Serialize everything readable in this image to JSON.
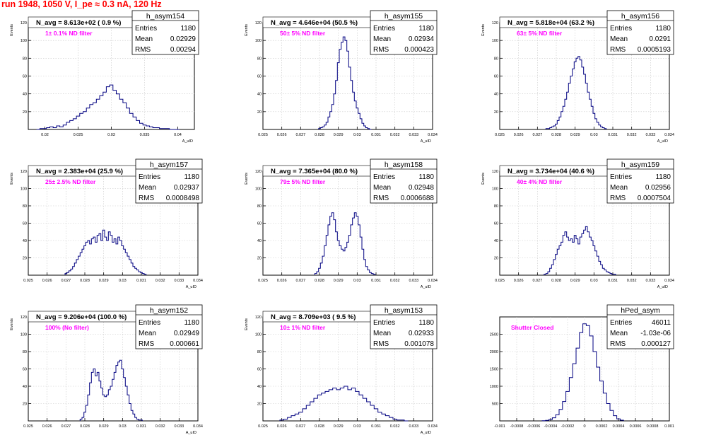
{
  "header": {
    "run_title": "run 1948,  1050 V, I_pe ≈ 0.3 nA, 120 Hz"
  },
  "colors": {
    "hist_line": "#000080",
    "title_red": "#ff0000",
    "filter_magenta": "#ff00ff",
    "grid": "#c8c8c8",
    "axis": "#000000"
  },
  "chart_data": [
    {
      "type": "bar",
      "title": "h_asym154",
      "stats": {
        "entries_label": "Entries",
        "entries": "1180",
        "mean_label": "Mean",
        "mean": "0.02929",
        "rms_label": "RMS",
        "rms": "0.00294"
      },
      "navg": "N_avg = 8.613e+02 ( 0.9 %)",
      "filter": "1± 0.1% ND filter",
      "xlabel": "A_uID",
      "ylabel": "Events",
      "xlim": [
        0.0175,
        0.0425
      ],
      "ylim": [
        0,
        120
      ],
      "xticks": [
        "0.02",
        "0.025",
        "0.03",
        "0.035",
        "0.04"
      ],
      "yticks": [
        "20",
        "40",
        "60",
        "80",
        "100",
        "120"
      ],
      "x": [
        0.019,
        0.0195,
        0.02,
        0.0205,
        0.021,
        0.0215,
        0.022,
        0.0225,
        0.023,
        0.0235,
        0.024,
        0.0245,
        0.025,
        0.0255,
        0.026,
        0.0265,
        0.027,
        0.0275,
        0.028,
        0.0285,
        0.029,
        0.0295,
        0.03,
        0.0305,
        0.031,
        0.0315,
        0.032,
        0.0325,
        0.033,
        0.0335,
        0.034,
        0.0345,
        0.035,
        0.0355,
        0.036,
        0.0365,
        0.037,
        0.0375,
        0.038,
        0.0385,
        0.039,
        0.0395,
        0.04
      ],
      "values": [
        0,
        1,
        1,
        2,
        3,
        2,
        4,
        3,
        5,
        8,
        10,
        12,
        15,
        18,
        20,
        24,
        28,
        30,
        34,
        38,
        42,
        48,
        50,
        44,
        40,
        34,
        30,
        24,
        18,
        14,
        10,
        7,
        5,
        4,
        3,
        2,
        2,
        1,
        1,
        1,
        0,
        0,
        0
      ]
    },
    {
      "type": "bar",
      "title": "h_asym155",
      "stats": {
        "entries_label": "Entries",
        "entries": "1180",
        "mean_label": "Mean",
        "mean": "0.02934",
        "rms_label": "RMS",
        "rms": "0.000423"
      },
      "navg": "N_avg = 4.646e+04 (50.5 %)",
      "filter": "50± 5% ND filter",
      "xlabel": "A_uID",
      "ylabel": "Events",
      "xlim": [
        0.025,
        0.034
      ],
      "ylim": [
        0,
        120
      ],
      "xticks": [
        "0.025",
        "0.026",
        "0.027",
        "0.028",
        "0.029",
        "0.03",
        "0.031",
        "0.032",
        "0.033",
        "0.034"
      ],
      "yticks": [
        "20",
        "40",
        "60",
        "80",
        "100",
        "120"
      ],
      "x": [
        0.028,
        0.0281,
        0.0282,
        0.0283,
        0.0284,
        0.0285,
        0.0286,
        0.0287,
        0.0288,
        0.0289,
        0.029,
        0.0291,
        0.0292,
        0.0293,
        0.0294,
        0.0295,
        0.0296,
        0.0297,
        0.0298,
        0.0299,
        0.03,
        0.0301,
        0.0302,
        0.0303,
        0.0304,
        0.0305,
        0.0306,
        0.0307
      ],
      "values": [
        1,
        2,
        3,
        5,
        8,
        14,
        20,
        28,
        40,
        55,
        75,
        90,
        98,
        104,
        100,
        88,
        70,
        55,
        42,
        32,
        24,
        18,
        12,
        7,
        4,
        2,
        1,
        0
      ]
    },
    {
      "type": "bar",
      "title": "h_asym156",
      "stats": {
        "entries_label": "Entries",
        "entries": "1180",
        "mean_label": "Mean",
        "mean": "0.0291",
        "rms_label": "RMS",
        "rms": "0.0005193"
      },
      "navg": "N_avg = 5.818e+04 (63.2 %)",
      "filter": "63± 5% ND filter",
      "xlabel": "A_uID",
      "ylabel": "Events",
      "xlim": [
        0.025,
        0.034
      ],
      "ylim": [
        0,
        120
      ],
      "xticks": [
        "0.025",
        "0.026",
        "0.027",
        "0.028",
        "0.029",
        "0.03",
        "0.031",
        "0.032",
        "0.033",
        "0.034"
      ],
      "yticks": [
        "20",
        "40",
        "60",
        "80",
        "100",
        "120"
      ],
      "x": [
        0.0275,
        0.0276,
        0.0277,
        0.0278,
        0.0279,
        0.028,
        0.0281,
        0.0282,
        0.0283,
        0.0284,
        0.0285,
        0.0286,
        0.0287,
        0.0288,
        0.0289,
        0.029,
        0.0291,
        0.0292,
        0.0293,
        0.0294,
        0.0295,
        0.0296,
        0.0297,
        0.0298,
        0.0299,
        0.03,
        0.0301,
        0.0302,
        0.0303,
        0.0304,
        0.0305,
        0.0306
      ],
      "values": [
        1,
        1,
        2,
        3,
        4,
        6,
        10,
        14,
        20,
        26,
        34,
        42,
        52,
        60,
        68,
        76,
        80,
        82,
        78,
        70,
        62,
        52,
        42,
        34,
        26,
        18,
        12,
        8,
        5,
        3,
        2,
        1
      ]
    },
    {
      "type": "bar",
      "title": "h_asym157",
      "stats": {
        "entries_label": "Entries",
        "entries": "1180",
        "mean_label": "Mean",
        "mean": "0.02937",
        "rms_label": "RMS",
        "rms": "0.0008498"
      },
      "navg": "N_avg = 2.383e+04 (25.9 %)",
      "filter": "25± 2.5% ND filter",
      "xlabel": "A_uID",
      "ylabel": "Events",
      "xlim": [
        0.025,
        0.034
      ],
      "ylim": [
        0,
        120
      ],
      "xticks": [
        "0.025",
        "0.026",
        "0.027",
        "0.028",
        "0.029",
        "0.03",
        "0.031",
        "0.032",
        "0.033",
        "0.034"
      ],
      "yticks": [
        "20",
        "40",
        "60",
        "80",
        "100",
        "120"
      ],
      "x": [
        0.027,
        0.0271,
        0.0272,
        0.0273,
        0.0274,
        0.0275,
        0.0276,
        0.0277,
        0.0278,
        0.0279,
        0.028,
        0.0281,
        0.0282,
        0.0283,
        0.0284,
        0.0285,
        0.0286,
        0.0287,
        0.0288,
        0.0289,
        0.029,
        0.0291,
        0.0292,
        0.0293,
        0.0294,
        0.0295,
        0.0296,
        0.0297,
        0.0298,
        0.0299,
        0.03,
        0.0301,
        0.0302,
        0.0303,
        0.0304,
        0.0305,
        0.0306,
        0.0307,
        0.0308,
        0.0309,
        0.031,
        0.0311,
        0.0312
      ],
      "values": [
        2,
        3,
        5,
        7,
        10,
        14,
        18,
        22,
        26,
        30,
        34,
        38,
        40,
        36,
        42,
        44,
        38,
        46,
        48,
        40,
        52,
        44,
        40,
        50,
        46,
        38,
        42,
        36,
        44,
        40,
        34,
        30,
        26,
        22,
        18,
        14,
        10,
        8,
        6,
        4,
        3,
        2,
        1
      ]
    },
    {
      "type": "bar",
      "title": "h_asym158",
      "stats": {
        "entries_label": "Entries",
        "entries": "1180",
        "mean_label": "Mean",
        "mean": "0.02948",
        "rms_label": "RMS",
        "rms": "0.0006688"
      },
      "navg": "N_avg = 7.365e+04 (80.0 %)",
      "filter": "79± 5% ND filter",
      "xlabel": "A_uID",
      "ylabel": "Events",
      "xlim": [
        0.025,
        0.034
      ],
      "ylim": [
        0,
        120
      ],
      "xticks": [
        "0.025",
        "0.026",
        "0.027",
        "0.028",
        "0.029",
        "0.03",
        "0.031",
        "0.032",
        "0.033",
        "0.034"
      ],
      "yticks": [
        "20",
        "40",
        "60",
        "80",
        "100",
        "120"
      ],
      "x": [
        0.0278,
        0.0279,
        0.028,
        0.0281,
        0.0282,
        0.0283,
        0.0284,
        0.0285,
        0.0286,
        0.0287,
        0.0288,
        0.0289,
        0.029,
        0.0291,
        0.0292,
        0.0293,
        0.0294,
        0.0295,
        0.0296,
        0.0297,
        0.0298,
        0.0299,
        0.03,
        0.0301,
        0.0302,
        0.0303,
        0.0304,
        0.0305,
        0.0306,
        0.0307,
        0.0308,
        0.0309
      ],
      "values": [
        2,
        4,
        8,
        14,
        22,
        34,
        46,
        58,
        68,
        72,
        64,
        50,
        40,
        34,
        30,
        28,
        32,
        38,
        46,
        58,
        66,
        72,
        68,
        58,
        44,
        30,
        18,
        10,
        6,
        3,
        2,
        1
      ]
    },
    {
      "type": "bar",
      "title": "h_asym159",
      "stats": {
        "entries_label": "Entries",
        "entries": "1180",
        "mean_label": "Mean",
        "mean": "0.02956",
        "rms_label": "RMS",
        "rms": "0.0007504"
      },
      "navg": "N_avg = 3.734e+04 (40.6 %)",
      "filter": "40± 4% ND filter",
      "xlabel": "A_uID",
      "ylabel": "Events",
      "xlim": [
        0.025,
        0.034
      ],
      "ylim": [
        0,
        120
      ],
      "xticks": [
        "0.025",
        "0.026",
        "0.027",
        "0.028",
        "0.029",
        "0.03",
        "0.031",
        "0.032",
        "0.033",
        "0.034"
      ],
      "yticks": [
        "20",
        "40",
        "60",
        "80",
        "100",
        "120"
      ],
      "x": [
        0.0274,
        0.0275,
        0.0276,
        0.0277,
        0.0278,
        0.0279,
        0.028,
        0.0281,
        0.0282,
        0.0283,
        0.0284,
        0.0285,
        0.0286,
        0.0287,
        0.0288,
        0.0289,
        0.029,
        0.0291,
        0.0292,
        0.0293,
        0.0294,
        0.0295,
        0.0296,
        0.0297,
        0.0298,
        0.0299,
        0.03,
        0.0301,
        0.0302,
        0.0303,
        0.0304,
        0.0305,
        0.0306,
        0.0307,
        0.0308,
        0.0309,
        0.031,
        0.0311
      ],
      "values": [
        1,
        2,
        4,
        8,
        12,
        18,
        24,
        30,
        34,
        38,
        46,
        50,
        44,
        40,
        42,
        38,
        46,
        42,
        36,
        44,
        48,
        52,
        56,
        50,
        44,
        40,
        34,
        28,
        22,
        16,
        12,
        8,
        6,
        4,
        3,
        2,
        1,
        1
      ]
    },
    {
      "type": "bar",
      "title": "h_asym152",
      "stats": {
        "entries_label": "Entries",
        "entries": "1180",
        "mean_label": "Mean",
        "mean": "0.02949",
        "rms_label": "RMS",
        "rms": "0.000661"
      },
      "navg": "N_avg = 9.206e+04 (100.0 %)",
      "filter": "100% (No filter)",
      "xlabel": "A_uID",
      "ylabel": "Events",
      "xlim": [
        0.025,
        0.034
      ],
      "ylim": [
        0,
        120
      ],
      "xticks": [
        "0.025",
        "0.026",
        "0.027",
        "0.028",
        "0.029",
        "0.03",
        "0.031",
        "0.032",
        "0.033",
        "0.034"
      ],
      "yticks": [
        "20",
        "40",
        "60",
        "80",
        "100",
        "120"
      ],
      "x": [
        0.0278,
        0.0279,
        0.028,
        0.0281,
        0.0282,
        0.0283,
        0.0284,
        0.0285,
        0.0286,
        0.0287,
        0.0288,
        0.0289,
        0.029,
        0.0291,
        0.0292,
        0.0293,
        0.0294,
        0.0295,
        0.0296,
        0.0297,
        0.0298,
        0.0299,
        0.03,
        0.0301,
        0.0302,
        0.0303,
        0.0304,
        0.0305,
        0.0306,
        0.0307,
        0.0308,
        0.0309,
        0.031
      ],
      "values": [
        2,
        4,
        10,
        18,
        30,
        44,
        56,
        60,
        52,
        56,
        46,
        38,
        30,
        28,
        30,
        36,
        40,
        48,
        56,
        64,
        68,
        70,
        60,
        50,
        40,
        30,
        20,
        12,
        8,
        4,
        2,
        1,
        1
      ]
    },
    {
      "type": "bar",
      "title": "h_asym153",
      "stats": {
        "entries_label": "Entries",
        "entries": "1180",
        "mean_label": "Mean",
        "mean": "0.02933",
        "rms_label": "RMS",
        "rms": "0.001078"
      },
      "navg": "N_avg = 8.709e+03 ( 9.5 %)",
      "filter": "10± 1% ND filter",
      "xlabel": "A_uID",
      "ylabel": "Events",
      "xlim": [
        0.025,
        0.034
      ],
      "ylim": [
        0,
        120
      ],
      "xticks": [
        "0.025",
        "0.026",
        "0.027",
        "0.028",
        "0.029",
        "0.03",
        "0.031",
        "0.032",
        "0.033",
        "0.034"
      ],
      "yticks": [
        "20",
        "40",
        "60",
        "80",
        "100",
        "120"
      ],
      "x": [
        0.026,
        0.0262,
        0.0264,
        0.0266,
        0.0268,
        0.027,
        0.0272,
        0.0274,
        0.0276,
        0.0278,
        0.028,
        0.0282,
        0.0284,
        0.0286,
        0.0288,
        0.029,
        0.0292,
        0.0294,
        0.0296,
        0.0298,
        0.03,
        0.0302,
        0.0304,
        0.0306,
        0.0308,
        0.031,
        0.0312,
        0.0314,
        0.0316,
        0.0318,
        0.032,
        0.0322,
        0.0324,
        0.0326
      ],
      "values": [
        1,
        2,
        4,
        6,
        8,
        10,
        14,
        18,
        22,
        26,
        30,
        32,
        34,
        36,
        38,
        36,
        38,
        40,
        36,
        38,
        34,
        30,
        26,
        22,
        18,
        14,
        10,
        8,
        6,
        4,
        2,
        1,
        1,
        0
      ]
    },
    {
      "type": "bar",
      "title": "hPed_asym",
      "stats": {
        "entries_label": "Entries",
        "entries": "46011",
        "mean_label": "Mean",
        "mean": "-1.03e-06",
        "rms_label": "RMS",
        "rms": "0.000127"
      },
      "navg": "",
      "filter": "Shutter Closed",
      "xlabel": "",
      "ylabel": "",
      "xlim": [
        -0.001,
        0.001
      ],
      "ylim": [
        0,
        3000
      ],
      "xticks": [
        "-0.001",
        "-0.0008",
        "-0.0006",
        "-0.0004",
        "-0.0002",
        "0",
        "0.0002",
        "0.0004",
        "0.0006",
        "0.0008",
        "0.001"
      ],
      "yticks": [
        "500",
        "1000",
        "1500",
        "2000",
        "2500"
      ],
      "x": [
        -0.00048,
        -0.00044,
        -0.0004,
        -0.00036,
        -0.00032,
        -0.00028,
        -0.00024,
        -0.0002,
        -0.00016,
        -0.00012,
        -8e-05,
        -4e-05,
        0.0,
        4e-05,
        8e-05,
        0.00012,
        0.00016,
        0.0002,
        0.00024,
        0.00028,
        0.00032,
        0.00036,
        0.0004,
        0.00044
      ],
      "values": [
        5,
        15,
        40,
        90,
        180,
        330,
        560,
        850,
        1250,
        1650,
        2100,
        2550,
        2800,
        2750,
        2450,
        2000,
        1550,
        1150,
        800,
        500,
        300,
        150,
        60,
        20
      ]
    }
  ]
}
